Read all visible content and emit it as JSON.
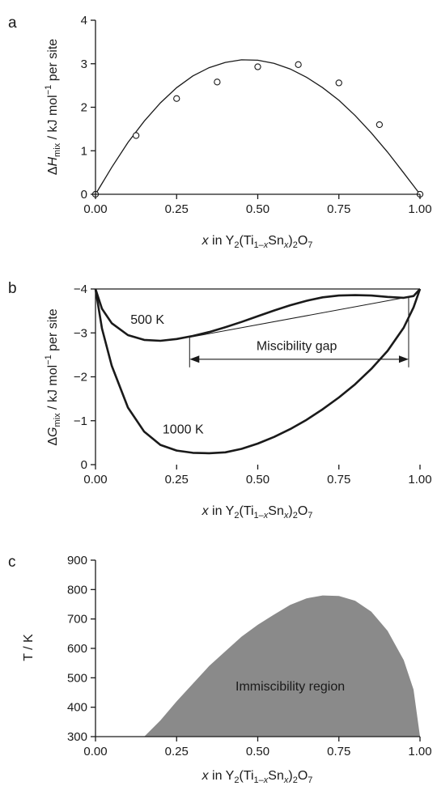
{
  "chart_data": [
    {
      "type": "scatter",
      "panel_label": "a",
      "xlim": [
        0,
        1
      ],
      "ylim": [
        0,
        4
      ],
      "x_ticks": [
        "0.00",
        "0.25",
        "0.50",
        "0.75",
        "1.00"
      ],
      "y_ticks": [
        "0",
        "1",
        "2",
        "3",
        "4"
      ],
      "xlabel": "x in Y2(Ti1–xSnx)2O7",
      "ylabel": "ΔHmix / kJ mol−1 per site",
      "points": {
        "x": [
          0.0,
          0.125,
          0.25,
          0.375,
          0.5,
          0.625,
          0.75,
          0.875,
          1.0
        ],
        "y": [
          0.0,
          1.35,
          2.2,
          2.58,
          2.93,
          2.98,
          2.56,
          1.6,
          0.0
        ]
      },
      "fit_curve": {
        "x": [
          0,
          0.05,
          0.1,
          0.15,
          0.2,
          0.25,
          0.3,
          0.35,
          0.4,
          0.45,
          0.5,
          0.55,
          0.6,
          0.65,
          0.7,
          0.75,
          0.8,
          0.85,
          0.9,
          0.95,
          1.0
        ],
        "y": [
          0,
          0.62,
          1.19,
          1.68,
          2.1,
          2.45,
          2.72,
          2.91,
          3.03,
          3.09,
          3.08,
          3.01,
          2.88,
          2.69,
          2.45,
          2.16,
          1.81,
          1.41,
          0.97,
          0.49,
          0
        ]
      },
      "grid": false,
      "legend": "none"
    },
    {
      "type": "line",
      "panel_label": "b",
      "xlim": [
        0,
        1
      ],
      "ylim": [
        -4,
        0
      ],
      "x_ticks": [
        "0.00",
        "0.25",
        "0.50",
        "0.75",
        "1.00"
      ],
      "y_ticks": [
        "0",
        "−1",
        "−2",
        "−3",
        "−4"
      ],
      "xlabel": "x in Y2(Ti1–xSnx)2O7",
      "ylabel": "ΔGmix / kJ mol−1 per site",
      "series": [
        {
          "name": "500 K",
          "x": [
            0,
            0.02,
            0.05,
            0.1,
            0.15,
            0.2,
            0.25,
            0.3,
            0.35,
            0.4,
            0.45,
            0.5,
            0.55,
            0.6,
            0.65,
            0.7,
            0.75,
            0.8,
            0.85,
            0.9,
            0.95,
            0.98,
            1.0
          ],
          "y": [
            0,
            -0.45,
            -0.78,
            -1.05,
            -1.16,
            -1.18,
            -1.14,
            -1.07,
            -0.98,
            -0.87,
            -0.75,
            -0.62,
            -0.49,
            -0.37,
            -0.27,
            -0.19,
            -0.15,
            -0.14,
            -0.15,
            -0.18,
            -0.2,
            -0.16,
            0
          ]
        },
        {
          "name": "1000 K",
          "x": [
            0,
            0.02,
            0.05,
            0.1,
            0.15,
            0.2,
            0.25,
            0.3,
            0.35,
            0.4,
            0.45,
            0.5,
            0.55,
            0.6,
            0.65,
            0.7,
            0.75,
            0.8,
            0.85,
            0.9,
            0.95,
            0.98,
            1.0
          ],
          "y": [
            0,
            -0.9,
            -1.75,
            -2.7,
            -3.25,
            -3.55,
            -3.68,
            -3.73,
            -3.74,
            -3.72,
            -3.64,
            -3.52,
            -3.37,
            -3.19,
            -2.98,
            -2.74,
            -2.47,
            -2.17,
            -1.82,
            -1.41,
            -0.88,
            -0.42,
            0
          ]
        }
      ],
      "common_tangent": {
        "x": [
          0.29,
          0.965
        ],
        "y": [
          -1.1,
          -0.18
        ]
      },
      "annotations": [
        {
          "text": "500 K",
          "x": 0.16,
          "y": -0.7
        },
        {
          "text": "1000 K",
          "x": 0.27,
          "y": -3.2
        },
        {
          "text": "Miscibility gap",
          "x": 0.62,
          "y": -1.3
        }
      ],
      "miscibility_gap_arrow": {
        "x": [
          0.29,
          0.965
        ],
        "y": -1.6
      },
      "grid": false,
      "legend": "none"
    },
    {
      "type": "area",
      "panel_label": "c",
      "xlim": [
        0,
        1
      ],
      "ylim": [
        300,
        900
      ],
      "x_ticks": [
        "0.00",
        "0.25",
        "0.50",
        "0.75",
        "1.00"
      ],
      "y_ticks": [
        "300",
        "400",
        "500",
        "600",
        "700",
        "800",
        "900"
      ],
      "xlabel": "x in Y2(Ti1–xSnx)2O7",
      "ylabel": "T / K",
      "region": {
        "name": "Immiscibility region",
        "x": [
          0.15,
          0.2,
          0.25,
          0.3,
          0.35,
          0.4,
          0.45,
          0.5,
          0.55,
          0.6,
          0.65,
          0.7,
          0.75,
          0.8,
          0.85,
          0.9,
          0.95,
          0.98,
          1.0
        ],
        "y": [
          300,
          355,
          420,
          480,
          540,
          590,
          640,
          680,
          715,
          748,
          770,
          780,
          778,
          762,
          725,
          660,
          560,
          460,
          300
        ]
      },
      "annotations": [
        {
          "text": "Immiscibility region",
          "x": 0.6,
          "y": 470
        }
      ],
      "grid": false,
      "legend": "none"
    }
  ]
}
